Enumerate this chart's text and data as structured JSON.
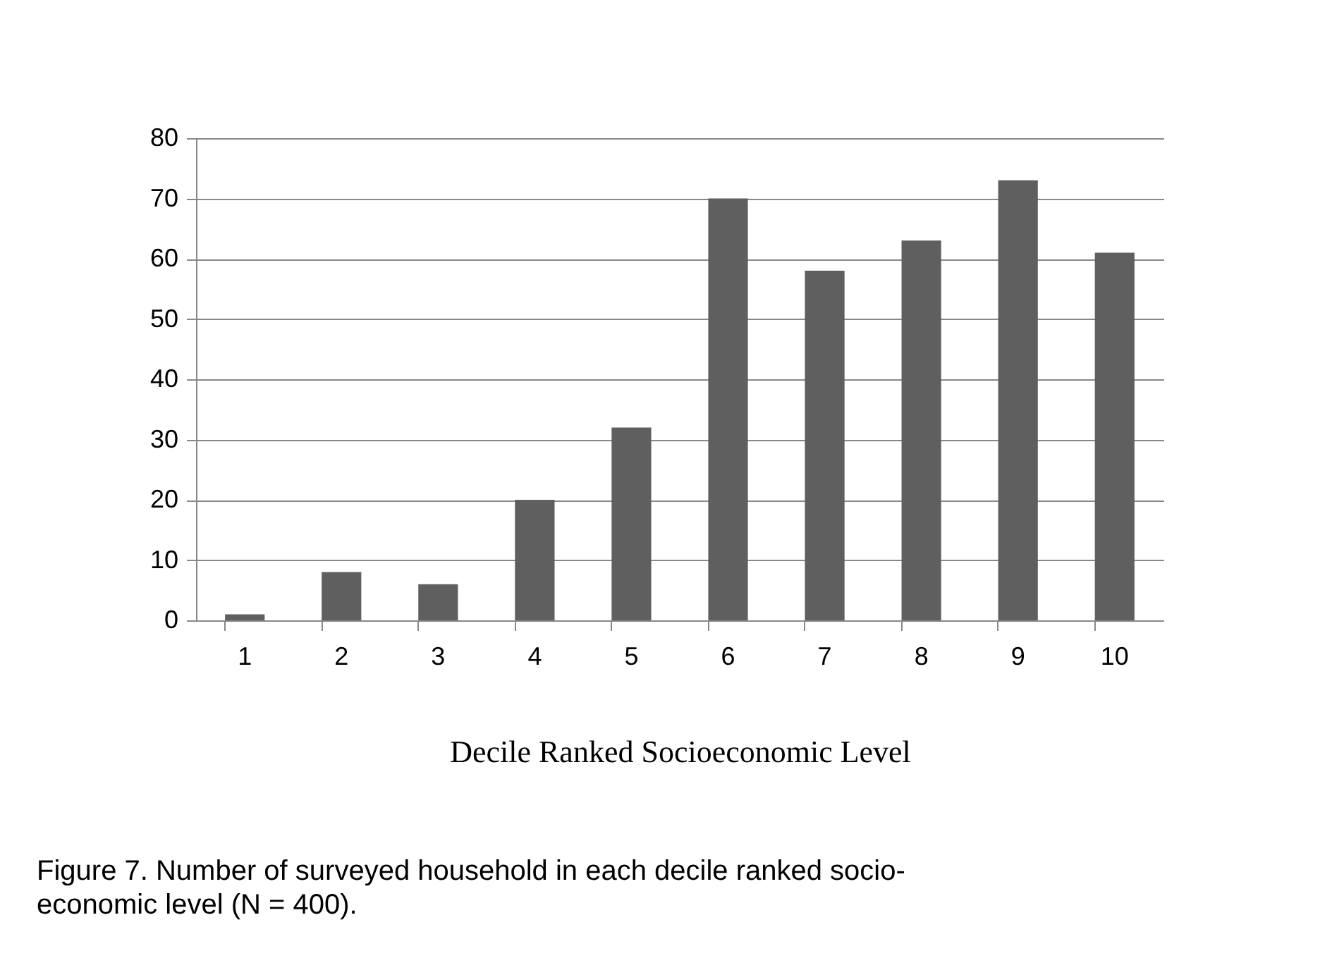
{
  "chart_data": {
    "type": "bar",
    "xlabel": "Decile Ranked Socioeconomic Level",
    "categories": [
      "1",
      "2",
      "3",
      "4",
      "5",
      "6",
      "7",
      "8",
      "9",
      "10"
    ],
    "values": [
      1,
      8,
      6,
      20,
      32,
      70,
      58,
      63,
      73,
      61
    ],
    "color": "#5f5f5f",
    "ylim": [
      0,
      80
    ],
    "yticks": [
      0,
      10,
      20,
      30,
      40,
      50,
      60,
      70,
      80
    ],
    "grid": "y",
    "legend": false,
    "annotations": [
      "Figure 7.  Number of surveyed household in each decile ranked socio-economic level (N = 400)."
    ]
  }
}
